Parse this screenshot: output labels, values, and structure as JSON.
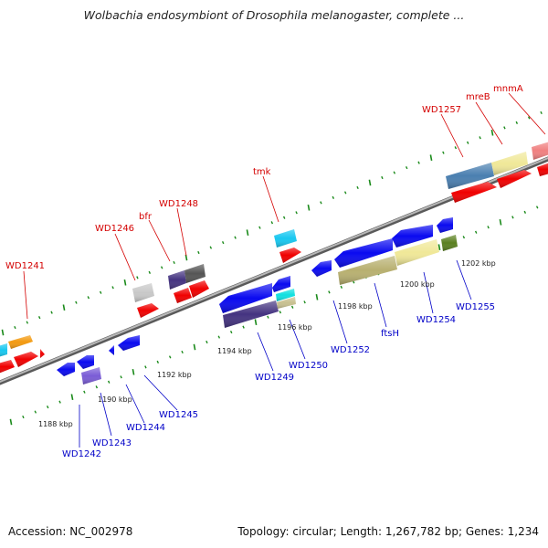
{
  "title": "Wolbachia endosymbiont of Drosophila melanogaster, complete ...",
  "footer": {
    "accession": "Accession: NC_002978",
    "summary": "Topology: circular; Length: 1,267,782 bp; Genes: 1,234"
  },
  "colors": {
    "backbone": "#8a8a8a",
    "tick": "#1a8a1a",
    "top_label": "#d40000",
    "bottom_label": "#0000c8"
  },
  "gene_labels_top": [
    "WD1241",
    "WD1246",
    "bfr",
    "WD1248",
    "tmk",
    "WD1257",
    "mreB",
    "mnmA"
  ],
  "gene_labels_bottom": [
    "WD1242",
    "WD1243",
    "WD1244",
    "WD1245",
    "WD1249",
    "WD1250",
    "WD1252",
    "ftsH",
    "WD1254",
    "WD1255"
  ],
  "scale_labels": [
    "1188 kbp",
    "1190 kbp",
    "1192 kbp",
    "1194 kbp",
    "1196 kbp",
    "1198 kbp",
    "1200 kbp",
    "1202 kbp"
  ]
}
